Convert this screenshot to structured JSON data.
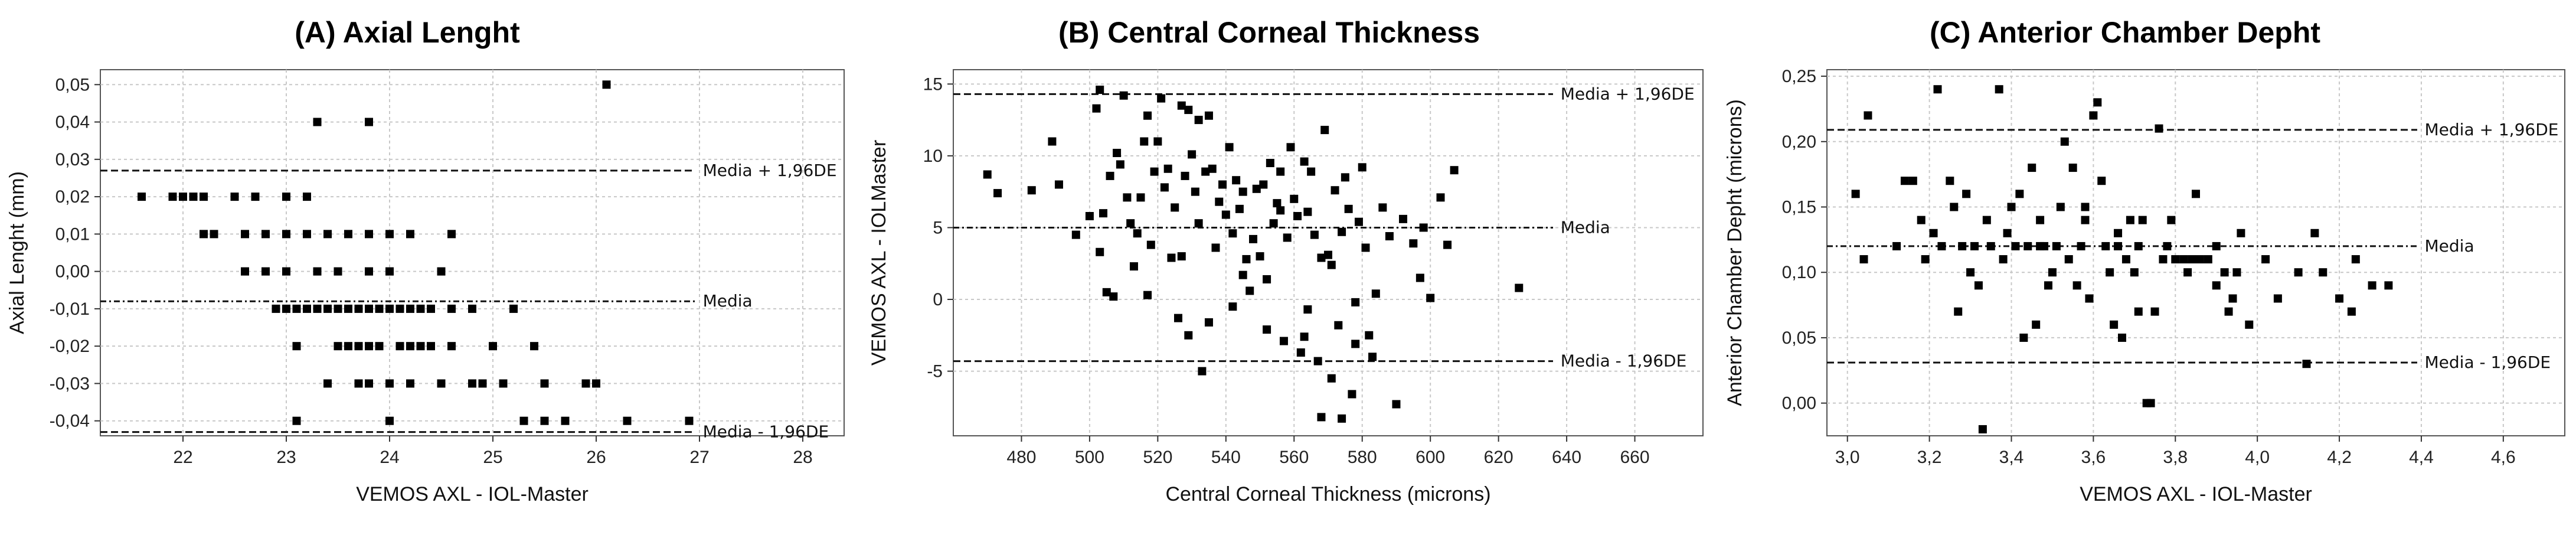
{
  "chart_data": [
    {
      "type": "scatter",
      "title": "(A) Axial Lenght",
      "xlabel": "VEMOS AXL - IOL-Master",
      "ylabel": "Axial Lenght (mm)",
      "xlim": [
        21.2,
        28.4
      ],
      "ylim": [
        -0.044,
        0.054
      ],
      "xticks": [
        22,
        23,
        24,
        25,
        26,
        27,
        28
      ],
      "xtick_labels": [
        "22",
        "23",
        "24",
        "25",
        "26",
        "27",
        "28"
      ],
      "yticks": [
        -0.04,
        -0.03,
        -0.02,
        -0.01,
        0.0,
        0.01,
        0.02,
        0.03,
        0.04,
        0.05
      ],
      "ytick_labels": [
        "-0,04",
        "-0,03",
        "-0,02",
        "-0,01",
        "0,00",
        "0,01",
        "0,02",
        "0,03",
        "0,04",
        "0,05"
      ],
      "grid": true,
      "reference_lines": [
        {
          "label": "Media + 1,96DE",
          "y": 0.027,
          "style": "dashed"
        },
        {
          "label": "Media",
          "y": -0.008,
          "style": "dashdot"
        },
        {
          "label": "Media - 1,96DE",
          "y": -0.043,
          "style": "dashed"
        }
      ],
      "points": [
        [
          21.6,
          0.02
        ],
        [
          21.9,
          0.02
        ],
        [
          22.0,
          0.02
        ],
        [
          22.1,
          0.02
        ],
        [
          22.2,
          0.02
        ],
        [
          22.5,
          0.02
        ],
        [
          22.7,
          0.02
        ],
        [
          23.0,
          0.02
        ],
        [
          23.2,
          0.02
        ],
        [
          22.2,
          0.01
        ],
        [
          22.3,
          0.01
        ],
        [
          22.6,
          0.01
        ],
        [
          22.8,
          0.01
        ],
        [
          23.0,
          0.01
        ],
        [
          23.2,
          0.01
        ],
        [
          23.4,
          0.01
        ],
        [
          23.6,
          0.01
        ],
        [
          23.8,
          0.01
        ],
        [
          24.0,
          0.01
        ],
        [
          24.2,
          0.01
        ],
        [
          24.6,
          0.01
        ],
        [
          22.6,
          0.0
        ],
        [
          22.8,
          0.0
        ],
        [
          23.0,
          0.0
        ],
        [
          23.3,
          0.0
        ],
        [
          23.5,
          0.0
        ],
        [
          23.8,
          0.0
        ],
        [
          24.0,
          0.0
        ],
        [
          24.5,
          0.0
        ],
        [
          22.9,
          -0.01
        ],
        [
          23.0,
          -0.01
        ],
        [
          23.1,
          -0.01
        ],
        [
          23.2,
          -0.01
        ],
        [
          23.3,
          -0.01
        ],
        [
          23.4,
          -0.01
        ],
        [
          23.5,
          -0.01
        ],
        [
          23.6,
          -0.01
        ],
        [
          23.7,
          -0.01
        ],
        [
          23.8,
          -0.01
        ],
        [
          23.9,
          -0.01
        ],
        [
          24.0,
          -0.01
        ],
        [
          24.1,
          -0.01
        ],
        [
          24.2,
          -0.01
        ],
        [
          24.3,
          -0.01
        ],
        [
          24.4,
          -0.01
        ],
        [
          24.6,
          -0.01
        ],
        [
          24.8,
          -0.01
        ],
        [
          25.2,
          -0.01
        ],
        [
          23.1,
          -0.02
        ],
        [
          23.5,
          -0.02
        ],
        [
          23.6,
          -0.02
        ],
        [
          23.7,
          -0.02
        ],
        [
          23.8,
          -0.02
        ],
        [
          23.9,
          -0.02
        ],
        [
          24.1,
          -0.02
        ],
        [
          24.2,
          -0.02
        ],
        [
          24.3,
          -0.02
        ],
        [
          24.4,
          -0.02
        ],
        [
          24.6,
          -0.02
        ],
        [
          25.0,
          -0.02
        ],
        [
          25.4,
          -0.02
        ],
        [
          23.4,
          -0.03
        ],
        [
          23.7,
          -0.03
        ],
        [
          23.8,
          -0.03
        ],
        [
          24.0,
          -0.03
        ],
        [
          24.2,
          -0.03
        ],
        [
          24.5,
          -0.03
        ],
        [
          24.8,
          -0.03
        ],
        [
          24.9,
          -0.03
        ],
        [
          25.1,
          -0.03
        ],
        [
          25.5,
          -0.03
        ],
        [
          25.9,
          -0.03
        ],
        [
          26.0,
          -0.03
        ],
        [
          23.1,
          -0.04
        ],
        [
          24.0,
          -0.04
        ],
        [
          25.3,
          -0.04
        ],
        [
          25.5,
          -0.04
        ],
        [
          25.7,
          -0.04
        ],
        [
          26.3,
          -0.04
        ],
        [
          26.9,
          -0.04
        ],
        [
          23.3,
          0.04
        ],
        [
          23.8,
          0.04
        ],
        [
          26.1,
          0.05
        ]
      ]
    },
    {
      "type": "scatter",
      "title": "(B) Central Corneal Thickness",
      "xlabel": "Central Corneal Thickness (microns)",
      "ylabel": "VEMOS AXL - IOLMaster",
      "xlim": [
        460,
        680
      ],
      "ylim": [
        -9.5,
        16
      ],
      "xticks": [
        480,
        500,
        520,
        540,
        560,
        580,
        600,
        620,
        640,
        660
      ],
      "xtick_labels": [
        "480",
        "500",
        "520",
        "540",
        "560",
        "580",
        "600",
        "620",
        "640",
        "660"
      ],
      "yticks": [
        -5,
        0,
        5,
        10,
        15
      ],
      "ytick_labels": [
        "-5",
        "0",
        "5",
        "10",
        "15"
      ],
      "grid": true,
      "reference_lines": [
        {
          "label": "Media + 1,96DE",
          "y": 14.3,
          "style": "dashed"
        },
        {
          "label": "Media",
          "y": 5.0,
          "style": "dashdot"
        },
        {
          "label": "Media - 1,96DE",
          "y": -4.3,
          "style": "dashed"
        }
      ],
      "points": [
        [
          470,
          8.7
        ],
        [
          473,
          7.4
        ],
        [
          483,
          7.6
        ],
        [
          489,
          11.0
        ],
        [
          491,
          8.0
        ],
        [
          496,
          4.5
        ],
        [
          500,
          5.8
        ],
        [
          502,
          13.3
        ],
        [
          503,
          14.6
        ],
        [
          503,
          3.3
        ],
        [
          504,
          6.0
        ],
        [
          505,
          0.5
        ],
        [
          506,
          8.6
        ],
        [
          507,
          0.2
        ],
        [
          508,
          10.2
        ],
        [
          509,
          9.4
        ],
        [
          510,
          14.2
        ],
        [
          511,
          7.1
        ],
        [
          512,
          5.3
        ],
        [
          514,
          4.6
        ],
        [
          515,
          7.1
        ],
        [
          516,
          11.0
        ],
        [
          517,
          0.3
        ],
        [
          518,
          3.8
        ],
        [
          519,
          8.9
        ],
        [
          520,
          11.0
        ],
        [
          521,
          14.0
        ],
        [
          522,
          7.8
        ],
        [
          523,
          9.1
        ],
        [
          525,
          6.4
        ],
        [
          526,
          -1.3
        ],
        [
          527,
          3.0
        ],
        [
          528,
          8.6
        ],
        [
          529,
          13.2
        ],
        [
          530,
          10.1
        ],
        [
          531,
          7.5
        ],
        [
          532,
          5.3
        ],
        [
          533,
          -5.0
        ],
        [
          534,
          8.9
        ],
        [
          535,
          12.8
        ],
        [
          536,
          9.1
        ],
        [
          537,
          3.6
        ],
        [
          538,
          6.8
        ],
        [
          539,
          8.0
        ],
        [
          540,
          5.9
        ],
        [
          541,
          10.6
        ],
        [
          542,
          4.6
        ],
        [
          543,
          8.3
        ],
        [
          544,
          6.3
        ],
        [
          545,
          7.5
        ],
        [
          546,
          2.8
        ],
        [
          547,
          0.6
        ],
        [
          548,
          4.2
        ],
        [
          549,
          7.7
        ],
        [
          550,
          3.0
        ],
        [
          551,
          8.0
        ],
        [
          552,
          1.4
        ],
        [
          553,
          9.5
        ],
        [
          554,
          5.3
        ],
        [
          555,
          6.7
        ],
        [
          556,
          8.9
        ],
        [
          557,
          -2.9
        ],
        [
          558,
          4.3
        ],
        [
          559,
          10.6
        ],
        [
          560,
          7.0
        ],
        [
          561,
          5.8
        ],
        [
          562,
          -3.7
        ],
        [
          563,
          9.6
        ],
        [
          564,
          6.1
        ],
        [
          565,
          8.9
        ],
        [
          566,
          4.5
        ],
        [
          567,
          -4.3
        ],
        [
          568,
          2.9
        ],
        [
          569,
          11.8
        ],
        [
          570,
          3.1
        ],
        [
          571,
          -5.5
        ],
        [
          572,
          7.6
        ],
        [
          573,
          -1.8
        ],
        [
          574,
          4.7
        ],
        [
          575,
          8.5
        ],
        [
          576,
          6.3
        ],
        [
          577,
          -6.6
        ],
        [
          578,
          -0.2
        ],
        [
          579,
          5.4
        ],
        [
          580,
          9.2
        ],
        [
          581,
          3.6
        ],
        [
          582,
          -2.5
        ],
        [
          584,
          0.4
        ],
        [
          586,
          6.4
        ],
        [
          588,
          4.4
        ],
        [
          590,
          -7.3
        ],
        [
          592,
          5.6
        ],
        [
          595,
          3.9
        ],
        [
          597,
          1.5
        ],
        [
          600,
          0.1
        ],
        [
          603,
          7.1
        ],
        [
          605,
          3.8
        ],
        [
          607,
          9.0
        ],
        [
          626,
          0.8
        ],
        [
          598,
          5.0
        ],
        [
          513,
          2.3
        ],
        [
          524,
          2.9
        ],
        [
          535,
          -1.6
        ],
        [
          545,
          1.7
        ],
        [
          552,
          -2.1
        ],
        [
          564,
          -0.7
        ],
        [
          571,
          2.4
        ],
        [
          583,
          -4.0
        ],
        [
          556,
          6.2
        ],
        [
          527,
          13.5
        ],
        [
          532,
          12.5
        ],
        [
          517,
          12.8
        ],
        [
          542,
          -0.5
        ],
        [
          563,
          -2.6
        ],
        [
          568,
          -8.2
        ],
        [
          574,
          -8.3
        ],
        [
          578,
          -3.1
        ],
        [
          529,
          -2.5
        ]
      ]
    },
    {
      "type": "scatter",
      "title": "(C) Anterior Chamber Depht",
      "xlabel": "VEMOS AXL - IOL-Master",
      "ylabel": "Anterior Chamber Depht (microns)",
      "xlim": [
        2.95,
        4.75
      ],
      "ylim": [
        -0.025,
        0.255
      ],
      "xticks": [
        3.0,
        3.2,
        3.4,
        3.6,
        3.8,
        4.0,
        4.2,
        4.4,
        4.6
      ],
      "xtick_labels": [
        "3,0",
        "3,2",
        "3,4",
        "3,6",
        "3,8",
        "4,0",
        "4,2",
        "4,4",
        "4,6"
      ],
      "yticks": [
        0.0,
        0.05,
        0.1,
        0.15,
        0.2,
        0.25
      ],
      "ytick_labels": [
        "0,00",
        "0,05",
        "0,10",
        "0,15",
        "0,20",
        "0,25"
      ],
      "grid": true,
      "reference_lines": [
        {
          "label": "Media + 1,96DE",
          "y": 0.209,
          "style": "dashed"
        },
        {
          "label": "Media",
          "y": 0.12,
          "style": "dashdot"
        },
        {
          "label": "Media - 1,96DE",
          "y": 0.031,
          "style": "dashed"
        }
      ],
      "points": [
        [
          3.02,
          0.16
        ],
        [
          3.05,
          0.22
        ],
        [
          3.04,
          0.11
        ],
        [
          3.12,
          0.12
        ],
        [
          3.14,
          0.17
        ],
        [
          3.16,
          0.17
        ],
        [
          3.18,
          0.14
        ],
        [
          3.19,
          0.11
        ],
        [
          3.21,
          0.13
        ],
        [
          3.22,
          0.24
        ],
        [
          3.23,
          0.12
        ],
        [
          3.25,
          0.17
        ],
        [
          3.26,
          0.15
        ],
        [
          3.27,
          0.07
        ],
        [
          3.28,
          0.12
        ],
        [
          3.29,
          0.16
        ],
        [
          3.3,
          0.1
        ],
        [
          3.31,
          0.12
        ],
        [
          3.32,
          0.09
        ],
        [
          3.33,
          -0.02
        ],
        [
          3.34,
          0.14
        ],
        [
          3.35,
          0.12
        ],
        [
          3.37,
          0.24
        ],
        [
          3.38,
          0.11
        ],
        [
          3.39,
          0.13
        ],
        [
          3.4,
          0.15
        ],
        [
          3.41,
          0.12
        ],
        [
          3.42,
          0.16
        ],
        [
          3.43,
          0.05
        ],
        [
          3.44,
          0.12
        ],
        [
          3.45,
          0.18
        ],
        [
          3.46,
          0.06
        ],
        [
          3.47,
          0.14
        ],
        [
          3.48,
          0.12
        ],
        [
          3.49,
          0.09
        ],
        [
          3.5,
          0.1
        ],
        [
          3.51,
          0.12
        ],
        [
          3.52,
          0.15
        ],
        [
          3.53,
          0.2
        ],
        [
          3.54,
          0.11
        ],
        [
          3.55,
          0.18
        ],
        [
          3.56,
          0.09
        ],
        [
          3.57,
          0.12
        ],
        [
          3.58,
          0.14
        ],
        [
          3.59,
          0.08
        ],
        [
          3.6,
          0.22
        ],
        [
          3.61,
          0.23
        ],
        [
          3.62,
          0.17
        ],
        [
          3.63,
          0.12
        ],
        [
          3.64,
          0.1
        ],
        [
          3.65,
          0.06
        ],
        [
          3.66,
          0.13
        ],
        [
          3.67,
          0.05
        ],
        [
          3.68,
          0.11
        ],
        [
          3.69,
          0.14
        ],
        [
          3.7,
          0.1
        ],
        [
          3.71,
          0.12
        ],
        [
          3.72,
          0.14
        ],
        [
          3.73,
          0.0
        ],
        [
          3.74,
          0.0
        ],
        [
          3.75,
          0.07
        ],
        [
          3.76,
          0.21
        ],
        [
          3.77,
          0.11
        ],
        [
          3.78,
          0.12
        ],
        [
          3.79,
          0.14
        ],
        [
          3.8,
          0.11
        ],
        [
          3.82,
          0.11
        ],
        [
          3.83,
          0.1
        ],
        [
          3.84,
          0.11
        ],
        [
          3.85,
          0.16
        ],
        [
          3.86,
          0.11
        ],
        [
          3.88,
          0.11
        ],
        [
          3.9,
          0.09
        ],
        [
          3.92,
          0.1
        ],
        [
          3.93,
          0.07
        ],
        [
          3.94,
          0.08
        ],
        [
          3.95,
          0.1
        ],
        [
          3.96,
          0.13
        ],
        [
          3.98,
          0.06
        ],
        [
          4.02,
          0.11
        ],
        [
          4.05,
          0.08
        ],
        [
          4.1,
          0.1
        ],
        [
          4.12,
          0.03
        ],
        [
          4.14,
          0.13
        ],
        [
          4.16,
          0.1
        ],
        [
          4.2,
          0.08
        ],
        [
          4.23,
          0.07
        ],
        [
          4.24,
          0.11
        ],
        [
          4.28,
          0.09
        ],
        [
          4.32,
          0.09
        ],
        [
          3.66,
          0.12
        ],
        [
          3.58,
          0.15
        ],
        [
          3.47,
          0.12
        ],
        [
          3.9,
          0.12
        ],
        [
          3.71,
          0.07
        ]
      ]
    }
  ]
}
